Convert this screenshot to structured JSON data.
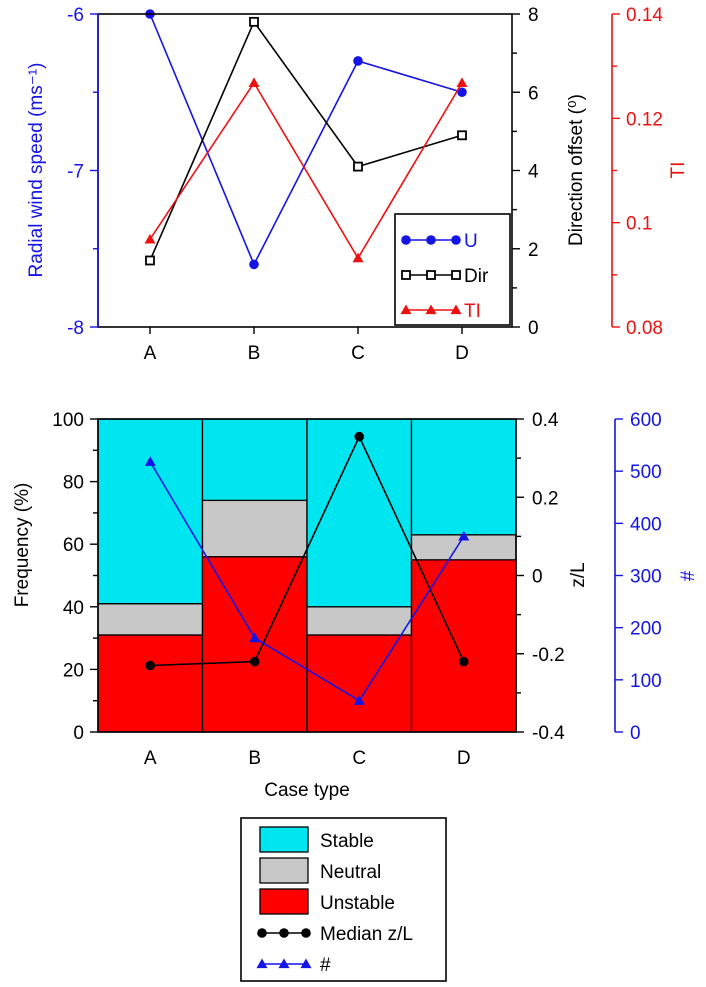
{
  "colors": {
    "u": "#1414e6",
    "dir": "#000000",
    "ti": "#ee1111",
    "stable": "#00e6f0",
    "neutral": "#c8c8c8",
    "unstable": "#ff0000",
    "zl": "#000000",
    "count": "#1414e6"
  },
  "chart_data": [
    {
      "type": "line",
      "categories": [
        "A",
        "B",
        "C",
        "D"
      ],
      "series": [
        {
          "name": "U",
          "axis": "left",
          "marker": "filled-circle",
          "values": [
            -6.0,
            -7.6,
            -6.3,
            -6.5
          ]
        },
        {
          "name": "Dir",
          "axis": "right1",
          "marker": "open-square",
          "values": [
            1.7,
            7.8,
            4.1,
            4.9
          ]
        },
        {
          "name": "TI",
          "axis": "right2",
          "marker": "filled-triangle",
          "values": [
            0.0968,
            0.1268,
            0.0932,
            0.1268
          ]
        }
      ],
      "axes": {
        "left": {
          "label": "Radial wind speed (ms⁻¹)",
          "ylim": [
            -8,
            -6
          ],
          "ticks": [
            "-6",
            "-7",
            "-8"
          ]
        },
        "right1": {
          "label": "Direction offset (⁰)",
          "ylim": [
            0,
            8
          ],
          "ticks": [
            "8",
            "6",
            "4",
            "2",
            "0"
          ]
        },
        "right2": {
          "label": "TI",
          "ylim": [
            0.08,
            0.14
          ],
          "ticks": [
            "0.14",
            "0.12",
            "0.1",
            "0.08"
          ]
        }
      },
      "legend_position": "bottom-right",
      "grid": false
    },
    {
      "type": "bar",
      "stacked": true,
      "categories": [
        "A",
        "B",
        "C",
        "D"
      ],
      "xlabel": "Case type",
      "stack_series": [
        {
          "name": "Unstable",
          "values": [
            31,
            56,
            31,
            55
          ]
        },
        {
          "name": "Neutral",
          "values": [
            10,
            18,
            9,
            8
          ]
        },
        {
          "name": "Stable",
          "values": [
            59,
            26,
            60,
            37
          ]
        }
      ],
      "line_series": [
        {
          "name": "Median z/L",
          "axis": "right1",
          "marker": "filled-circle",
          "values": [
            -0.23,
            -0.22,
            0.355,
            -0.22
          ]
        },
        {
          "name": "#",
          "axis": "right2",
          "marker": "filled-triangle",
          "values": [
            518,
            180,
            60,
            375
          ]
        }
      ],
      "axes": {
        "left": {
          "label": "Frequency (%)",
          "ylim": [
            0,
            100
          ],
          "ticks": [
            "100",
            "80",
            "60",
            "40",
            "20",
            "0"
          ]
        },
        "right1": {
          "label": "z/L",
          "ylim": [
            -0.4,
            0.4
          ],
          "ticks": [
            "0.4",
            "0.2",
            "0",
            "-0.2",
            "-0.4"
          ]
        },
        "right2": {
          "label": "#",
          "ylim": [
            0,
            600
          ],
          "ticks": [
            "600",
            "500",
            "400",
            "300",
            "200",
            "100",
            "0"
          ]
        }
      },
      "legend_position": "below",
      "legend": [
        "Stable",
        "Neutral",
        "Unstable",
        "Median z/L",
        "#"
      ],
      "grid": false
    }
  ]
}
